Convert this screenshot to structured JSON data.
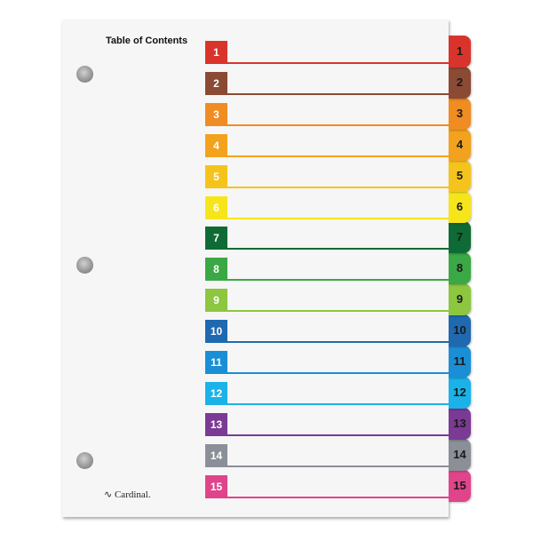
{
  "title": "Table of Contents",
  "brand": "Cardinal.",
  "entries": [
    {
      "label": "1",
      "color": "#d9342b"
    },
    {
      "label": "2",
      "color": "#8b4a33"
    },
    {
      "label": "3",
      "color": "#ef8c22"
    },
    {
      "label": "4",
      "color": "#f3a21d"
    },
    {
      "label": "5",
      "color": "#f5c41c"
    },
    {
      "label": "6",
      "color": "#f7e51c"
    },
    {
      "label": "7",
      "color": "#0f6b35"
    },
    {
      "label": "8",
      "color": "#3aa845"
    },
    {
      "label": "9",
      "color": "#8dc63f"
    },
    {
      "label": "10",
      "color": "#1f69b0"
    },
    {
      "label": "11",
      "color": "#1a8fd6"
    },
    {
      "label": "12",
      "color": "#1ab2e8"
    },
    {
      "label": "13",
      "color": "#7b3a93"
    },
    {
      "label": "14",
      "color": "#8a8f98"
    },
    {
      "label": "15",
      "color": "#e0448a"
    }
  ]
}
